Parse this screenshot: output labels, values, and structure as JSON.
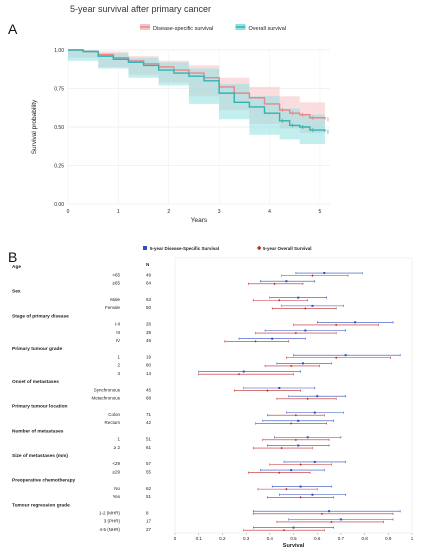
{
  "figure_title": "5-year survival after primary cancer",
  "chart_data": [
    {
      "panel": "A",
      "type": "line",
      "ylabel": "Survival probability",
      "xlabel": "Years",
      "xlim": [
        0,
        5.2
      ],
      "ylim": [
        0,
        1
      ],
      "xticks": [
        "0",
        "1",
        "2",
        "3",
        "4",
        "5"
      ],
      "yticks": [
        "0.00",
        "0.25",
        "0.50",
        "0.75",
        "1.00"
      ],
      "legend_position": "top",
      "series": [
        {
          "name": "Disease-specific survival",
          "color": "#e8868a",
          "band_color": "#f6c3c5",
          "points": [
            [
              0,
              1.0
            ],
            [
              0.3,
              0.99
            ],
            [
              0.6,
              0.97
            ],
            [
              0.9,
              0.95
            ],
            [
              1.2,
              0.93
            ],
            [
              1.5,
              0.91
            ],
            [
              1.8,
              0.89
            ],
            [
              2.1,
              0.87
            ],
            [
              2.4,
              0.85
            ],
            [
              2.7,
              0.82
            ],
            [
              3.0,
              0.76
            ],
            [
              3.3,
              0.72
            ],
            [
              3.6,
              0.69
            ],
            [
              3.9,
              0.65
            ],
            [
              4.2,
              0.61
            ],
            [
              4.4,
              0.59
            ],
            [
              4.6,
              0.58
            ],
            [
              4.8,
              0.56
            ],
            [
              5.1,
              0.55
            ]
          ],
          "ci_upper": [
            [
              0,
              1.0
            ],
            [
              0.6,
              0.99
            ],
            [
              1.2,
              0.96
            ],
            [
              1.8,
              0.93
            ],
            [
              2.4,
              0.9
            ],
            [
              3.0,
              0.82
            ],
            [
              3.6,
              0.76
            ],
            [
              4.2,
              0.7
            ],
            [
              4.6,
              0.66
            ],
            [
              5.1,
              0.65
            ]
          ],
          "ci_lower": [
            [
              0,
              1.0
            ],
            [
              0.6,
              0.95
            ],
            [
              1.2,
              0.89
            ],
            [
              1.8,
              0.84
            ],
            [
              2.4,
              0.79
            ],
            [
              3.0,
              0.7
            ],
            [
              3.6,
              0.61
            ],
            [
              4.2,
              0.52
            ],
            [
              4.6,
              0.49
            ],
            [
              5.1,
              0.46
            ]
          ]
        },
        {
          "name": "Overall survival",
          "color": "#2fb3b3",
          "band_color": "#8fe0e0",
          "points": [
            [
              0,
              1.0
            ],
            [
              0.3,
              0.99
            ],
            [
              0.6,
              0.96
            ],
            [
              0.9,
              0.94
            ],
            [
              1.2,
              0.92
            ],
            [
              1.5,
              0.9
            ],
            [
              1.8,
              0.87
            ],
            [
              2.1,
              0.85
            ],
            [
              2.4,
              0.83
            ],
            [
              2.7,
              0.8
            ],
            [
              3.0,
              0.72
            ],
            [
              3.3,
              0.66
            ],
            [
              3.6,
              0.63
            ],
            [
              3.9,
              0.59
            ],
            [
              4.2,
              0.54
            ],
            [
              4.4,
              0.51
            ],
            [
              4.6,
              0.5
            ],
            [
              4.8,
              0.48
            ],
            [
              5.1,
              0.47
            ]
          ],
          "ci_upper": [
            [
              0,
              1.0
            ],
            [
              0.6,
              0.98
            ],
            [
              1.2,
              0.95
            ],
            [
              1.8,
              0.92
            ],
            [
              2.4,
              0.88
            ],
            [
              3.0,
              0.78
            ],
            [
              3.6,
              0.7
            ],
            [
              4.2,
              0.62
            ],
            [
              4.6,
              0.58
            ],
            [
              5.1,
              0.56
            ]
          ],
          "ci_lower": [
            [
              0,
              1.0
            ],
            [
              0.6,
              0.93
            ],
            [
              1.2,
              0.88
            ],
            [
              1.8,
              0.82
            ],
            [
              2.4,
              0.77
            ],
            [
              3.0,
              0.65
            ],
            [
              3.6,
              0.55
            ],
            [
              4.2,
              0.45
            ],
            [
              4.6,
              0.42
            ],
            [
              5.1,
              0.39
            ]
          ]
        }
      ]
    },
    {
      "panel": "B",
      "type": "forest",
      "xlabel": "Survival",
      "xlim": [
        0,
        1
      ],
      "xticks": [
        "0",
        "0.1",
        "0.2",
        "0.3",
        "0.4",
        "0.5",
        "0.6",
        "0.7",
        "0.8",
        "0.9",
        "1"
      ],
      "n_header": "N",
      "legend": [
        {
          "name": "5-year Disease-Specific Survival",
          "color": "#2d4fbf",
          "marker": "square"
        },
        {
          "name": "5-year Overall Survival",
          "color": "#c0282d",
          "marker": "diamond"
        }
      ],
      "rows": [
        {
          "type": "header",
          "label": "Age"
        },
        {
          "type": "item",
          "label": "<65",
          "n": "49",
          "dss": [
            0.51,
            0.63,
            0.79
          ],
          "os": [
            0.45,
            0.58,
            0.73
          ]
        },
        {
          "type": "item",
          "label": "≥65",
          "n": "64",
          "dss": [
            0.36,
            0.47,
            0.59
          ],
          "os": [
            0.31,
            0.42,
            0.54
          ]
        },
        {
          "type": "header",
          "label": "Sex"
        },
        {
          "type": "item",
          "label": "Male",
          "n": "63",
          "dss": [
            0.4,
            0.52,
            0.64
          ],
          "os": [
            0.33,
            0.44,
            0.56
          ]
        },
        {
          "type": "item",
          "label": "Female",
          "n": "50",
          "dss": [
            0.45,
            0.58,
            0.71
          ],
          "os": [
            0.41,
            0.55,
            0.68
          ]
        },
        {
          "type": "header",
          "label": "Stage of primary disease"
        },
        {
          "type": "item",
          "label": "I-II",
          "n": "26",
          "dss": [
            0.6,
            0.76,
            0.92
          ],
          "os": [
            0.5,
            0.68,
            0.86
          ]
        },
        {
          "type": "item",
          "label": "III",
          "n": "39",
          "dss": [
            0.38,
            0.55,
            0.72
          ],
          "os": [
            0.34,
            0.51,
            0.68
          ]
        },
        {
          "type": "item",
          "label": "IV",
          "n": "48",
          "dss": [
            0.27,
            0.41,
            0.55
          ],
          "os": [
            0.21,
            0.34,
            0.48
          ]
        },
        {
          "type": "header",
          "label": "Primary tumour grade"
        },
        {
          "type": "item",
          "label": "1",
          "n": "19",
          "dss": [
            0.5,
            0.72,
            0.95
          ],
          "os": [
            0.47,
            0.68,
            0.91
          ]
        },
        {
          "type": "item",
          "label": "2",
          "n": "80",
          "dss": [
            0.43,
            0.54,
            0.66
          ],
          "os": [
            0.38,
            0.49,
            0.61
          ]
        },
        {
          "type": "item",
          "label": "3",
          "n": "14",
          "dss": [
            0.1,
            0.29,
            0.53
          ],
          "os": [
            0.1,
            0.27,
            0.5
          ]
        },
        {
          "type": "header",
          "label": "Onset of metastases"
        },
        {
          "type": "item",
          "label": "Synchronous",
          "n": "45",
          "dss": [
            0.29,
            0.44,
            0.59
          ],
          "os": [
            0.25,
            0.39,
            0.53
          ]
        },
        {
          "type": "item",
          "label": "Metachronous",
          "n": "68",
          "dss": [
            0.48,
            0.6,
            0.72
          ],
          "os": [
            0.43,
            0.56,
            0.68
          ]
        },
        {
          "type": "header",
          "label": "Primary tumour location"
        },
        {
          "type": "item",
          "label": "Colon",
          "n": "71",
          "dss": [
            0.47,
            0.59,
            0.71
          ],
          "os": [
            0.39,
            0.51,
            0.63
          ]
        },
        {
          "type": "item",
          "label": "Rectum",
          "n": "42",
          "dss": [
            0.37,
            0.52,
            0.67
          ],
          "os": [
            0.34,
            0.49,
            0.64
          ]
        },
        {
          "type": "header",
          "label": "Number of metastases"
        },
        {
          "type": "item",
          "label": "1",
          "n": "51",
          "dss": [
            0.42,
            0.56,
            0.7
          ],
          "os": [
            0.37,
            0.51,
            0.65
          ]
        },
        {
          "type": "item",
          "label": "≥ 2",
          "n": "61",
          "dss": [
            0.39,
            0.52,
            0.65
          ],
          "os": [
            0.33,
            0.45,
            0.58
          ]
        },
        {
          "type": "header",
          "label": "Size of metastases (mm)"
        },
        {
          "type": "item",
          "label": "<29",
          "n": "57",
          "dss": [
            0.46,
            0.59,
            0.72
          ],
          "os": [
            0.4,
            0.53,
            0.66
          ]
        },
        {
          "type": "item",
          "label": "≥29",
          "n": "55",
          "dss": [
            0.36,
            0.49,
            0.63
          ],
          "os": [
            0.31,
            0.44,
            0.57
          ]
        },
        {
          "type": "header",
          "label": "Preoperative chemotherapy"
        },
        {
          "type": "item",
          "label": "No",
          "n": "62",
          "dss": [
            0.41,
            0.53,
            0.66
          ],
          "os": [
            0.35,
            0.47,
            0.6
          ]
        },
        {
          "type": "item",
          "label": "Yes",
          "n": "51",
          "dss": [
            0.44,
            0.58,
            0.72
          ],
          "os": [
            0.39,
            0.53,
            0.67
          ]
        },
        {
          "type": "header",
          "label": "Tumour regression grade"
        },
        {
          "type": "item",
          "label": "1-2 (MHR)",
          "n": "8",
          "dss": [
            0.33,
            0.65,
            0.95
          ],
          "os": [
            0.33,
            0.62,
            0.92
          ]
        },
        {
          "type": "item",
          "label": "3 (PHR)",
          "n": "17",
          "dss": [
            0.48,
            0.7,
            0.92
          ],
          "os": [
            0.43,
            0.66,
            0.88
          ]
        },
        {
          "type": "item",
          "label": "4-5 (NHR)",
          "n": "27",
          "dss": [
            0.33,
            0.5,
            0.67
          ],
          "os": [
            0.29,
            0.46,
            0.63
          ]
        }
      ]
    }
  ]
}
